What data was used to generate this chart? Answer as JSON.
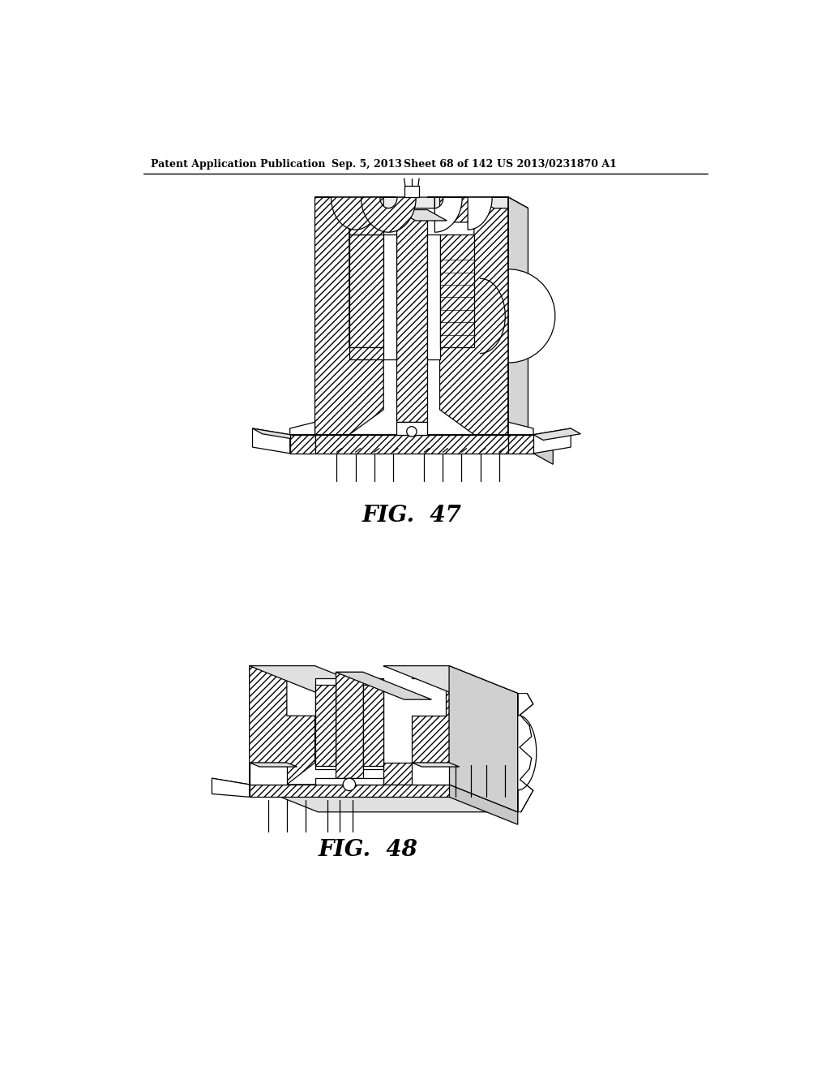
{
  "background_color": "#ffffff",
  "header_text": "Patent Application Publication",
  "header_date": "Sep. 5, 2013",
  "header_sheet": "Sheet 68 of 142",
  "header_patent": "US 2013/0231870 A1",
  "fig47_label": "FIG.  47",
  "fig48_label": "FIG.  48",
  "line_color": "#000000",
  "hatch_color": "#000000"
}
